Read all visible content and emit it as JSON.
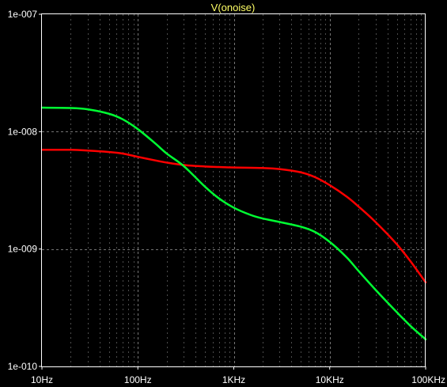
{
  "chart_data": {
    "type": "line",
    "title": "V(onoise)",
    "title_color": "#ffff66",
    "background": "#000000",
    "axis_color": "#ffffff",
    "grid": true,
    "grid_color": "#8a8a8a",
    "x_scale": "log",
    "y_scale": "log",
    "xlim": [
      10,
      100000
    ],
    "ylim": [
      1e-10,
      1e-07
    ],
    "x_ticks": [
      {
        "value": 10,
        "label": "10Hz"
      },
      {
        "value": 100,
        "label": "100Hz"
      },
      {
        "value": 1000,
        "label": "1KHz"
      },
      {
        "value": 10000,
        "label": "10KHz"
      },
      {
        "value": 100000,
        "label": "100KHz"
      }
    ],
    "y_ticks": [
      {
        "value": 1e-10,
        "label": "1e-010"
      },
      {
        "value": 1e-09,
        "label": "1e-009"
      },
      {
        "value": 1e-08,
        "label": "1e-008"
      },
      {
        "value": 1e-07,
        "label": "1e-007"
      }
    ],
    "series": [
      {
        "color": "#ff0000",
        "x": [
          10,
          20,
          30,
          50,
          70,
          100,
          150,
          200,
          300,
          500,
          700,
          1000,
          2000,
          3000,
          5000,
          7000,
          10000,
          15000,
          20000,
          30000,
          50000,
          70000,
          100000
        ],
        "y": [
          7e-09,
          7e-09,
          6.9e-09,
          6.7e-09,
          6.5e-09,
          6.1e-09,
          5.7e-09,
          5.45e-09,
          5.2e-09,
          5.05e-09,
          5e-09,
          4.95e-09,
          4.9e-09,
          4.8e-09,
          4.5e-09,
          4.1e-09,
          3.5e-09,
          2.8e-09,
          2.3e-09,
          1.7e-09,
          1.1e-09,
          7.8e-10,
          5.2e-10
        ]
      },
      {
        "color": "#00ff33",
        "x": [
          10,
          20,
          30,
          50,
          70,
          100,
          150,
          200,
          300,
          500,
          700,
          1000,
          1500,
          2000,
          3000,
          5000,
          7000,
          10000,
          15000,
          20000,
          30000,
          50000,
          70000,
          100000
        ],
        "y": [
          1.6e-08,
          1.59e-08,
          1.55e-08,
          1.42e-08,
          1.27e-08,
          1.05e-08,
          8e-09,
          6.5e-09,
          5.1e-09,
          3.4e-09,
          2.7e-09,
          2.25e-09,
          1.95e-09,
          1.82e-09,
          1.7e-09,
          1.55e-09,
          1.4e-09,
          1.15e-09,
          8.5e-10,
          6.5e-10,
          4.5e-10,
          2.9e-10,
          2.2e-10,
          1.7e-10
        ]
      }
    ]
  }
}
